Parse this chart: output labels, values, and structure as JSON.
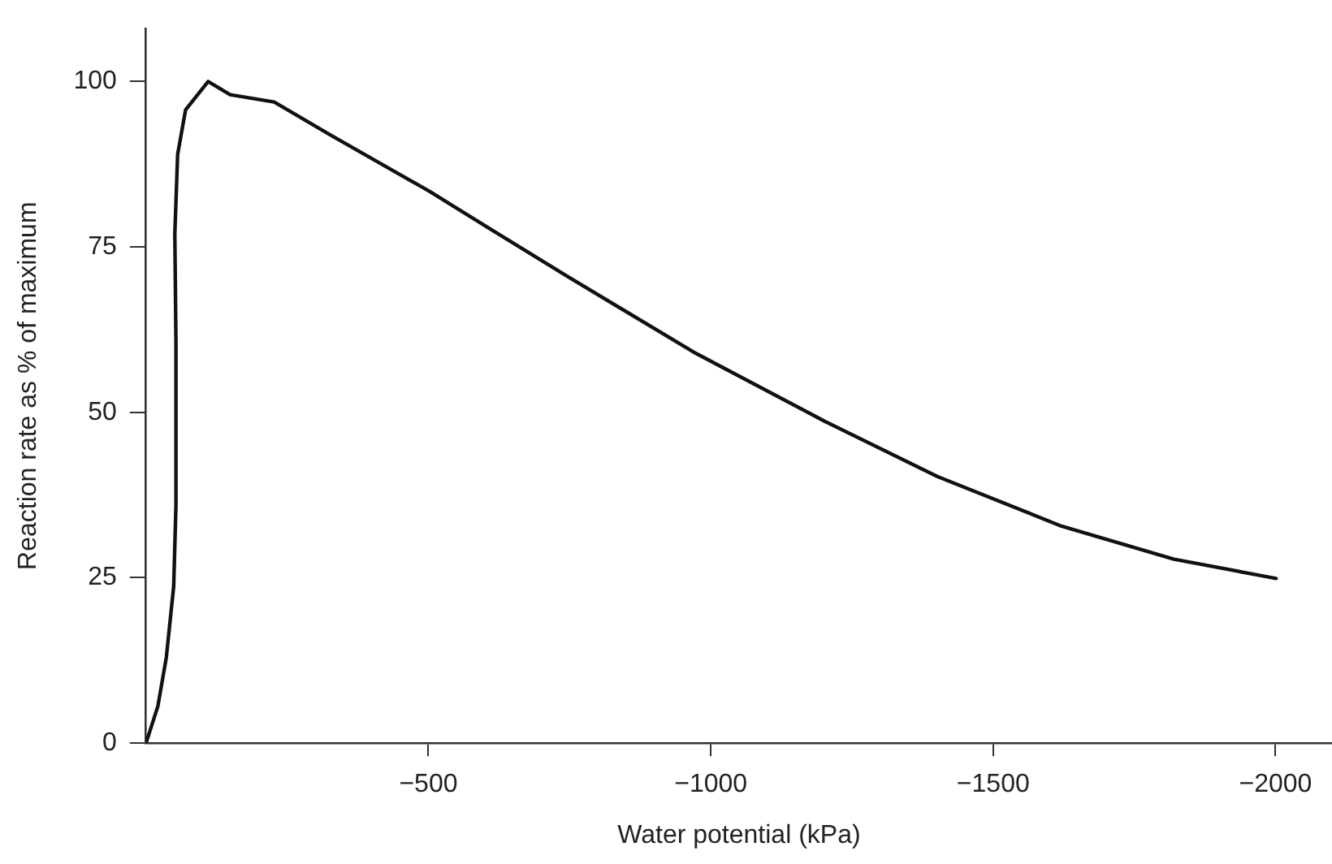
{
  "chart_data": {
    "type": "line",
    "xlabel": "Water potential (kPa)",
    "ylabel": "Reaction rate as % of maximum",
    "xlim": [
      0,
      -2100
    ],
    "ylim": [
      0,
      108
    ],
    "xticks": [
      {
        "value": -500,
        "label": "−500"
      },
      {
        "value": -1000,
        "label": "−1000"
      },
      {
        "value": -1500,
        "label": "−1500"
      },
      {
        "value": -2000,
        "label": "−2000"
      }
    ],
    "yticks": [
      0,
      25,
      50,
      75,
      100
    ],
    "grid": false,
    "legend": false,
    "marker": "none",
    "line_style": "solid",
    "series": [
      {
        "color": "#111111",
        "x": [
          0,
          -21,
          -36,
          -49,
          -53,
          -53,
          -51,
          -56,
          -70,
          -110,
          -149,
          -227,
          -325,
          -502,
          -604,
          -745,
          -974,
          -1203,
          -1401,
          -1621,
          -1820,
          -2001
        ],
        "values": [
          0,
          5.6,
          13,
          23.7,
          36,
          60.5,
          77,
          89,
          95.7,
          100,
          98,
          96.9,
          92,
          83.4,
          78,
          70.6,
          58.9,
          48.6,
          40.3,
          32.8,
          27.8,
          24.9
        ]
      }
    ]
  }
}
